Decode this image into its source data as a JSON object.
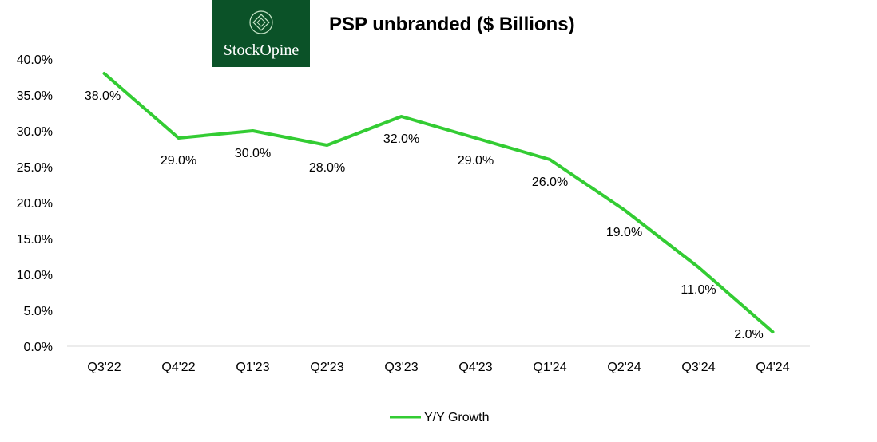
{
  "logo": {
    "text": "StockOpine",
    "icon": "diamond-emblem-icon",
    "background": "#0b5228"
  },
  "chart_data": {
    "type": "line",
    "title": "PSP unbranded ($ Billions)",
    "categories": [
      "Q3'22",
      "Q4'22",
      "Q1'23",
      "Q2'23",
      "Q3'23",
      "Q4'23",
      "Q1'24",
      "Q2'24",
      "Q3'24",
      "Q4'24"
    ],
    "series": [
      {
        "name": "Y/Y Growth",
        "color": "#33cc33",
        "values": [
          38.0,
          29.0,
          30.0,
          28.0,
          32.0,
          29.0,
          26.0,
          19.0,
          11.0,
          2.0
        ]
      }
    ],
    "ylim": [
      0,
      40
    ],
    "yticks": [
      "0.0%",
      "5.0%",
      "10.0%",
      "15.0%",
      "20.0%",
      "25.0%",
      "30.0%",
      "35.0%",
      "40.0%"
    ],
    "data_labels": [
      "38.0%",
      "29.0%",
      "30.0%",
      "28.0%",
      "32.0%",
      "29.0%",
      "26.0%",
      "19.0%",
      "11.0%",
      "2.0%"
    ],
    "xlabel": "",
    "ylabel": "",
    "grid": false,
    "legend": "bottom-center"
  }
}
